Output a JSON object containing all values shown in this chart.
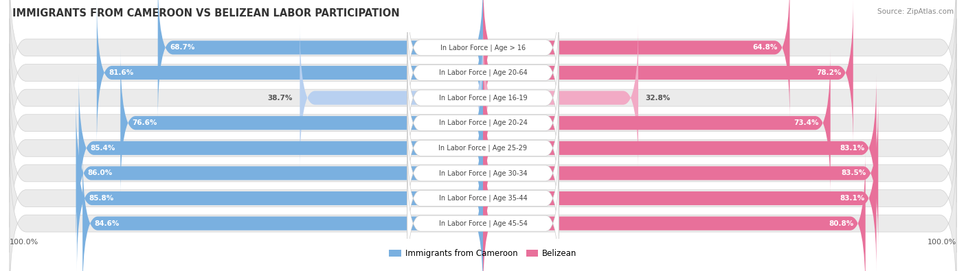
{
  "title": "IMMIGRANTS FROM CAMEROON VS BELIZEAN LABOR PARTICIPATION",
  "source": "Source: ZipAtlas.com",
  "categories": [
    "In Labor Force | Age > 16",
    "In Labor Force | Age 20-64",
    "In Labor Force | Age 16-19",
    "In Labor Force | Age 20-24",
    "In Labor Force | Age 25-29",
    "In Labor Force | Age 30-34",
    "In Labor Force | Age 35-44",
    "In Labor Force | Age 45-54"
  ],
  "cameroon_values": [
    68.7,
    81.6,
    38.7,
    76.6,
    85.4,
    86.0,
    85.8,
    84.6
  ],
  "belizean_values": [
    64.8,
    78.2,
    32.8,
    73.4,
    83.1,
    83.5,
    83.1,
    80.8
  ],
  "cameroon_color": "#7ab0e0",
  "cameroon_color_light": "#b8d0f0",
  "belizean_color": "#e8709a",
  "belizean_color_light": "#f2aac5",
  "row_bg_color": "#ebebeb",
  "label_color_white": "#ffffff",
  "label_color_dark": "#555555",
  "max_value": 100.0,
  "legend_cameroon": "Immigrants from Cameroon",
  "legend_belizean": "Belizean",
  "threshold": 50
}
